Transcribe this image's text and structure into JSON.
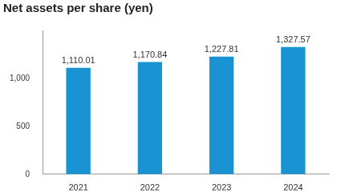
{
  "chart_data": {
    "type": "bar",
    "title": "Net assets per share (yen)",
    "categories": [
      "2021",
      "2022",
      "2023",
      "2024"
    ],
    "values": [
      1110.01,
      1170.84,
      1227.81,
      1327.57
    ],
    "value_labels": [
      "1,110.01",
      "1,170.84",
      "1,227.81",
      "1,327.57"
    ],
    "data_labels": true,
    "color": "#1a93d2",
    "ylim": [
      0,
      1500
    ],
    "yticks": [
      0,
      500,
      {
        "value": 1000,
        "label": "1,000"
      }
    ],
    "grid": false
  }
}
